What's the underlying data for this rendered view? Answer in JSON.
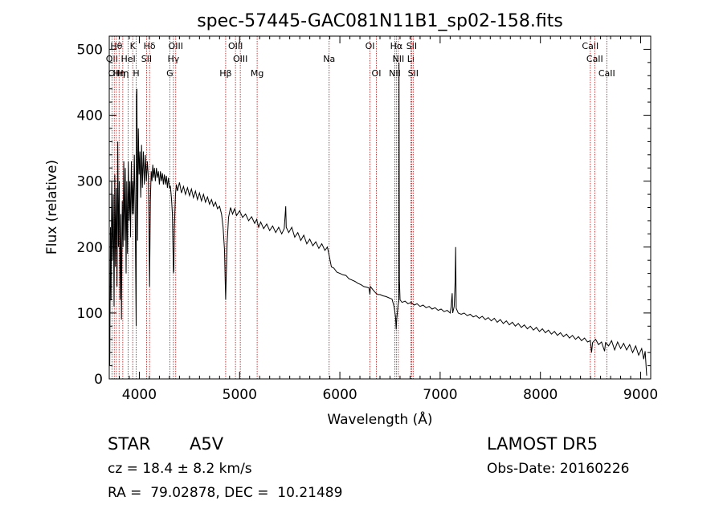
{
  "chart_data": {
    "type": "line",
    "title": "spec-57445-GAC081N11B1_sp02-158.fits",
    "xlabel": "Wavelength (Å)",
    "ylabel": "Flux (relative)",
    "xlim": [
      3700,
      9100
    ],
    "ylim": [
      0,
      520
    ],
    "x_ticks": [
      4000,
      5000,
      6000,
      7000,
      8000,
      9000
    ],
    "y_ticks": [
      0,
      100,
      200,
      300,
      400,
      500
    ],
    "grid": false,
    "colors": {
      "spectrum": "#000000",
      "line_markers": "#b01010"
    },
    "series": [
      {
        "points": [
          [
            3705,
            20
          ],
          [
            3712,
            230
          ],
          [
            3718,
            120
          ],
          [
            3725,
            300
          ],
          [
            3732,
            180
          ],
          [
            3740,
            280
          ],
          [
            3748,
            110
          ],
          [
            3755,
            310
          ],
          [
            3762,
            170
          ],
          [
            3770,
            290
          ],
          [
            3778,
            140
          ],
          [
            3785,
            360
          ],
          [
            3792,
            200
          ],
          [
            3800,
            300
          ],
          [
            3808,
            120
          ],
          [
            3815,
            250
          ],
          [
            3822,
            90
          ],
          [
            3830,
            270
          ],
          [
            3838,
            200
          ],
          [
            3845,
            330
          ],
          [
            3852,
            210
          ],
          [
            3860,
            320
          ],
          [
            3868,
            160
          ],
          [
            3875,
            300
          ],
          [
            3882,
            190
          ],
          [
            3890,
            330
          ],
          [
            3898,
            240
          ],
          [
            3905,
            300
          ],
          [
            3912,
            215
          ],
          [
            3920,
            330
          ],
          [
            3928,
            250
          ],
          [
            3935,
            300
          ],
          [
            3942,
            250
          ],
          [
            3950,
            340
          ],
          [
            3958,
            260
          ],
          [
            3964,
            150
          ],
          [
            3968,
            80
          ],
          [
            3972,
            430
          ],
          [
            3976,
            440
          ],
          [
            3982,
            210
          ],
          [
            3990,
            380
          ],
          [
            3998,
            310
          ],
          [
            4006,
            345
          ],
          [
            4014,
            275
          ],
          [
            4022,
            355
          ],
          [
            4030,
            290
          ],
          [
            4040,
            345
          ],
          [
            4050,
            295
          ],
          [
            4060,
            340
          ],
          [
            4070,
            300
          ],
          [
            4080,
            330
          ],
          [
            4090,
            305
          ],
          [
            4095,
            250
          ],
          [
            4102,
            140
          ],
          [
            4110,
            270
          ],
          [
            4118,
            315
          ],
          [
            4126,
            300
          ],
          [
            4134,
            325
          ],
          [
            4142,
            305
          ],
          [
            4150,
            320
          ],
          [
            4160,
            300
          ],
          [
            4170,
            320
          ],
          [
            4180,
            305
          ],
          [
            4190,
            315
          ],
          [
            4200,
            295
          ],
          [
            4210,
            315
          ],
          [
            4220,
            300
          ],
          [
            4230,
            312
          ],
          [
            4240,
            295
          ],
          [
            4250,
            310
          ],
          [
            4260,
            295
          ],
          [
            4270,
            308
          ],
          [
            4280,
            290
          ],
          [
            4290,
            305
          ],
          [
            4300,
            290
          ],
          [
            4310,
            292
          ],
          [
            4320,
            275
          ],
          [
            4330,
            250
          ],
          [
            4335,
            200
          ],
          [
            4340,
            160
          ],
          [
            4344,
            165
          ],
          [
            4350,
            230
          ],
          [
            4360,
            280
          ],
          [
            4370,
            295
          ],
          [
            4380,
            285
          ],
          [
            4400,
            298
          ],
          [
            4420,
            282
          ],
          [
            4440,
            292
          ],
          [
            4460,
            280
          ],
          [
            4480,
            290
          ],
          [
            4500,
            278
          ],
          [
            4520,
            288
          ],
          [
            4540,
            275
          ],
          [
            4560,
            285
          ],
          [
            4580,
            272
          ],
          [
            4600,
            282
          ],
          [
            4620,
            270
          ],
          [
            4640,
            280
          ],
          [
            4660,
            268
          ],
          [
            4680,
            276
          ],
          [
            4700,
            265
          ],
          [
            4720,
            272
          ],
          [
            4740,
            262
          ],
          [
            4760,
            268
          ],
          [
            4780,
            258
          ],
          [
            4800,
            262
          ],
          [
            4820,
            250
          ],
          [
            4835,
            230
          ],
          [
            4850,
            195
          ],
          [
            4857,
            145
          ],
          [
            4861,
            120
          ],
          [
            4866,
            150
          ],
          [
            4875,
            205
          ],
          [
            4890,
            245
          ],
          [
            4910,
            260
          ],
          [
            4930,
            250
          ],
          [
            4950,
            258
          ],
          [
            4970,
            248
          ],
          [
            5000,
            255
          ],
          [
            5030,
            245
          ],
          [
            5060,
            250
          ],
          [
            5090,
            240
          ],
          [
            5120,
            246
          ],
          [
            5150,
            236
          ],
          [
            5170,
            242
          ],
          [
            5190,
            230
          ],
          [
            5210,
            238
          ],
          [
            5240,
            228
          ],
          [
            5270,
            235
          ],
          [
            5300,
            225
          ],
          [
            5330,
            232
          ],
          [
            5360,
            222
          ],
          [
            5390,
            230
          ],
          [
            5420,
            220
          ],
          [
            5445,
            228
          ],
          [
            5460,
            262
          ],
          [
            5465,
            230
          ],
          [
            5490,
            222
          ],
          [
            5520,
            230
          ],
          [
            5550,
            215
          ],
          [
            5580,
            222
          ],
          [
            5610,
            210
          ],
          [
            5640,
            218
          ],
          [
            5670,
            205
          ],
          [
            5700,
            212
          ],
          [
            5730,
            202
          ],
          [
            5760,
            208
          ],
          [
            5790,
            198
          ],
          [
            5820,
            205
          ],
          [
            5850,
            195
          ],
          [
            5875,
            200
          ],
          [
            5890,
            190
          ],
          [
            5896,
            185
          ],
          [
            5905,
            178
          ],
          [
            5915,
            170
          ],
          [
            5940,
            168
          ],
          [
            5970,
            162
          ],
          [
            6000,
            160
          ],
          [
            6030,
            158
          ],
          [
            6060,
            157
          ],
          [
            6090,
            152
          ],
          [
            6120,
            150
          ],
          [
            6150,
            148
          ],
          [
            6180,
            145
          ],
          [
            6210,
            143
          ],
          [
            6240,
            140
          ],
          [
            6270,
            139
          ],
          [
            6290,
            138
          ],
          [
            6300,
            128
          ],
          [
            6305,
            140
          ],
          [
            6330,
            135
          ],
          [
            6360,
            130
          ],
          [
            6380,
            128
          ],
          [
            6400,
            128
          ],
          [
            6430,
            126
          ],
          [
            6460,
            125
          ],
          [
            6490,
            123
          ],
          [
            6520,
            121
          ],
          [
            6540,
            110
          ],
          [
            6555,
            95
          ],
          [
            6562,
            75
          ],
          [
            6567,
            90
          ],
          [
            6580,
            112
          ],
          [
            6588,
            118
          ],
          [
            6590,
            480
          ],
          [
            6594,
            150
          ],
          [
            6600,
            120
          ],
          [
            6620,
            116
          ],
          [
            6650,
            118
          ],
          [
            6680,
            114
          ],
          [
            6710,
            116
          ],
          [
            6740,
            112
          ],
          [
            6770,
            114
          ],
          [
            6800,
            110
          ],
          [
            6830,
            112
          ],
          [
            6860,
            108
          ],
          [
            6890,
            110
          ],
          [
            6920,
            106
          ],
          [
            6950,
            108
          ],
          [
            6980,
            104
          ],
          [
            7010,
            106
          ],
          [
            7040,
            102
          ],
          [
            7070,
            104
          ],
          [
            7100,
            100
          ],
          [
            7110,
            110
          ],
          [
            7120,
            130
          ],
          [
            7125,
            100
          ],
          [
            7140,
            110
          ],
          [
            7150,
            150
          ],
          [
            7155,
            200
          ],
          [
            7160,
            107
          ],
          [
            7180,
            100
          ],
          [
            7210,
            98
          ],
          [
            7240,
            100
          ],
          [
            7270,
            96
          ],
          [
            7300,
            98
          ],
          [
            7330,
            94
          ],
          [
            7360,
            96
          ],
          [
            7390,
            92
          ],
          [
            7420,
            95
          ],
          [
            7450,
            90
          ],
          [
            7480,
            93
          ],
          [
            7510,
            88
          ],
          [
            7540,
            92
          ],
          [
            7570,
            86
          ],
          [
            7600,
            90
          ],
          [
            7630,
            84
          ],
          [
            7660,
            88
          ],
          [
            7690,
            82
          ],
          [
            7720,
            86
          ],
          [
            7750,
            80
          ],
          [
            7780,
            84
          ],
          [
            7810,
            78
          ],
          [
            7840,
            82
          ],
          [
            7870,
            76
          ],
          [
            7900,
            80
          ],
          [
            7930,
            74
          ],
          [
            7960,
            78
          ],
          [
            7990,
            72
          ],
          [
            8020,
            76
          ],
          [
            8050,
            70
          ],
          [
            8080,
            74
          ],
          [
            8110,
            68
          ],
          [
            8140,
            72
          ],
          [
            8170,
            66
          ],
          [
            8200,
            70
          ],
          [
            8230,
            64
          ],
          [
            8260,
            68
          ],
          [
            8290,
            62
          ],
          [
            8320,
            66
          ],
          [
            8350,
            60
          ],
          [
            8380,
            64
          ],
          [
            8410,
            58
          ],
          [
            8440,
            62
          ],
          [
            8470,
            56
          ],
          [
            8498,
            58
          ],
          [
            8510,
            40
          ],
          [
            8520,
            55
          ],
          [
            8550,
            60
          ],
          [
            8580,
            52
          ],
          [
            8610,
            56
          ],
          [
            8640,
            42
          ],
          [
            8650,
            55
          ],
          [
            8680,
            50
          ],
          [
            8710,
            58
          ],
          [
            8740,
            44
          ],
          [
            8770,
            56
          ],
          [
            8800,
            46
          ],
          [
            8830,
            54
          ],
          [
            8860,
            44
          ],
          [
            8890,
            52
          ],
          [
            8920,
            40
          ],
          [
            8950,
            50
          ],
          [
            8980,
            36
          ],
          [
            9010,
            46
          ],
          [
            9030,
            30
          ],
          [
            9045,
            42
          ],
          [
            9060,
            5
          ]
        ]
      }
    ],
    "lines": [
      {
        "wl": 3727,
        "label": "OII",
        "row": 2
      },
      {
        "wl": 3750,
        "label": "OII",
        "row": 3
      },
      {
        "wl": 3771,
        "label": "Hθ",
        "row": 1
      },
      {
        "wl": 3798,
        "label": "Hη",
        "row": 3
      },
      {
        "wl": 3835,
        "label": "Hη",
        "row": 3
      },
      {
        "wl": 3889,
        "label": "HeI",
        "row": 2
      },
      {
        "wl": 3934,
        "label": "K",
        "row": 1
      },
      {
        "wl": 3969,
        "label": "H",
        "row": 3
      },
      {
        "wl": 4072,
        "label": "SII",
        "row": 2
      },
      {
        "wl": 4102,
        "label": "Hδ",
        "row": 1
      },
      {
        "wl": 4304,
        "label": "G",
        "row": 3
      },
      {
        "wl": 4340,
        "label": "Hγ",
        "row": 2
      },
      {
        "wl": 4363,
        "label": "OIII",
        "row": 1
      },
      {
        "wl": 4861,
        "label": "Hβ",
        "row": 3
      },
      {
        "wl": 4959,
        "label": "OIII",
        "row": 1
      },
      {
        "wl": 5007,
        "label": "OIII",
        "row": 2
      },
      {
        "wl": 5175,
        "label": "Mg",
        "row": 3
      },
      {
        "wl": 5893,
        "label": "Na",
        "row": 2
      },
      {
        "wl": 6300,
        "label": "OI",
        "row": 1
      },
      {
        "wl": 6364,
        "label": "OI",
        "row": 3
      },
      {
        "wl": 6548,
        "label": "NII",
        "row": 3
      },
      {
        "wl": 6563,
        "label": "Hα",
        "row": 1
      },
      {
        "wl": 6583,
        "label": "NII",
        "row": 2
      },
      {
        "wl": 6707,
        "label": "Li",
        "row": 2
      },
      {
        "wl": 6716,
        "label": "SII",
        "row": 1
      },
      {
        "wl": 6731,
        "label": "SII",
        "row": 3
      },
      {
        "wl": 8498,
        "label": "CaII",
        "row": 1
      },
      {
        "wl": 8542,
        "label": "CaII",
        "row": 2
      },
      {
        "wl": 8662,
        "label": "CaII",
        "row": 3
      }
    ]
  },
  "info": {
    "object_class": "STAR",
    "subclass": "A5V",
    "survey": "LAMOST DR5",
    "redshift": "cz = 18.4 ± 8.2 km/s",
    "obs_date": "Obs-Date: 20160226",
    "coords": "RA =  79.02878, DEC =  10.21489"
  }
}
